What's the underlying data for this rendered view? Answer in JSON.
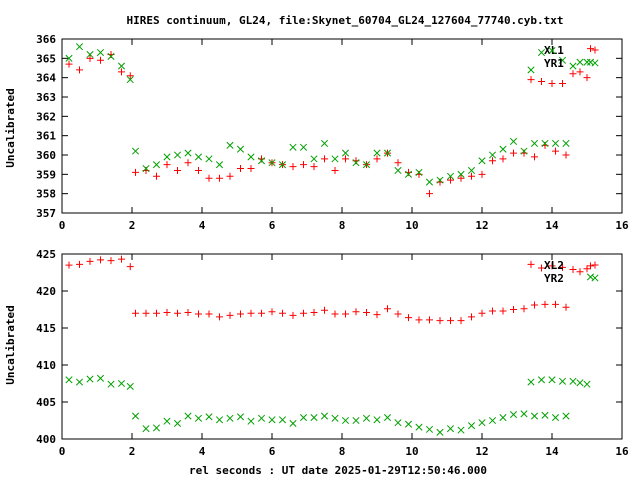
{
  "figure": {
    "title": "HIRES continuum, GL24, file:Skynet_60704_GL24_127604_77740.cyb.txt",
    "xlabel": "rel seconds : UT date 2025-01-29T12:50:46.000"
  },
  "colors": {
    "series1": "#ff0000",
    "series2": "#00a000",
    "axes": "#000000"
  },
  "chart_data": [
    {
      "type": "scatter",
      "ylabel": "Uncalibrated",
      "xlim": [
        0,
        16
      ],
      "ylim": [
        357,
        366
      ],
      "xticks": [
        "0",
        "2",
        "4",
        "6",
        "8",
        "10",
        "12",
        "14",
        "16"
      ],
      "yticks": [
        "357",
        "358",
        "359",
        "360",
        "361",
        "362",
        "363",
        "364",
        "365",
        "366"
      ],
      "legend_position": "top-right",
      "grid": false,
      "series": [
        {
          "name": "XL1",
          "marker": "plus",
          "color": "#ff0000",
          "points": [
            [
              0.2,
              364.7
            ],
            [
              0.5,
              364.4
            ],
            [
              0.8,
              365.0
            ],
            [
              1.1,
              364.9
            ],
            [
              1.4,
              365.2
            ],
            [
              1.7,
              364.3
            ],
            [
              1.95,
              364.1
            ],
            [
              2.1,
              359.1
            ],
            [
              2.4,
              359.2
            ],
            [
              2.7,
              358.9
            ],
            [
              3.0,
              359.5
            ],
            [
              3.3,
              359.2
            ],
            [
              3.6,
              359.6
            ],
            [
              3.9,
              359.2
            ],
            [
              4.2,
              358.8
            ],
            [
              4.5,
              358.8
            ],
            [
              4.8,
              358.9
            ],
            [
              5.1,
              359.3
            ],
            [
              5.4,
              359.3
            ],
            [
              5.7,
              359.8
            ],
            [
              6.0,
              359.6
            ],
            [
              6.3,
              359.5
            ],
            [
              6.6,
              359.4
            ],
            [
              6.9,
              359.5
            ],
            [
              7.2,
              359.4
            ],
            [
              7.5,
              359.8
            ],
            [
              7.8,
              359.2
            ],
            [
              8.1,
              359.8
            ],
            [
              8.4,
              359.7
            ],
            [
              8.7,
              359.5
            ],
            [
              9.0,
              359.8
            ],
            [
              9.3,
              360.1
            ],
            [
              9.6,
              359.6
            ],
            [
              9.9,
              359.1
            ],
            [
              10.2,
              359.0
            ],
            [
              10.5,
              358.0
            ],
            [
              10.8,
              358.6
            ],
            [
              11.1,
              358.7
            ],
            [
              11.4,
              358.8
            ],
            [
              11.7,
              358.9
            ],
            [
              12.0,
              359.0
            ],
            [
              12.3,
              359.7
            ],
            [
              12.6,
              359.8
            ],
            [
              12.9,
              360.1
            ],
            [
              13.2,
              360.1
            ],
            [
              13.5,
              359.9
            ],
            [
              13.8,
              360.5
            ],
            [
              14.1,
              360.2
            ],
            [
              14.4,
              360.0
            ],
            [
              13.4,
              363.9
            ],
            [
              13.7,
              363.8
            ],
            [
              14.0,
              363.7
            ],
            [
              14.3,
              363.7
            ],
            [
              14.6,
              364.2
            ],
            [
              14.8,
              364.3
            ],
            [
              15.0,
              364.0
            ],
            [
              15.1,
              365.5
            ]
          ]
        },
        {
          "name": "YR1",
          "marker": "cross",
          "color": "#00a000",
          "points": [
            [
              0.2,
              365.0
            ],
            [
              0.5,
              365.6
            ],
            [
              0.8,
              365.2
            ],
            [
              1.1,
              365.3
            ],
            [
              1.4,
              365.1
            ],
            [
              1.7,
              364.6
            ],
            [
              1.95,
              363.9
            ],
            [
              2.1,
              360.2
            ],
            [
              2.4,
              359.3
            ],
            [
              2.7,
              359.5
            ],
            [
              3.0,
              359.9
            ],
            [
              3.3,
              360.0
            ],
            [
              3.6,
              360.1
            ],
            [
              3.9,
              359.9
            ],
            [
              4.2,
              359.8
            ],
            [
              4.5,
              359.5
            ],
            [
              4.8,
              360.5
            ],
            [
              5.1,
              360.3
            ],
            [
              5.4,
              359.9
            ],
            [
              5.7,
              359.7
            ],
            [
              6.0,
              359.6
            ],
            [
              6.3,
              359.5
            ],
            [
              6.6,
              360.4
            ],
            [
              6.9,
              360.4
            ],
            [
              7.2,
              359.8
            ],
            [
              7.5,
              360.6
            ],
            [
              7.8,
              359.8
            ],
            [
              8.1,
              360.1
            ],
            [
              8.4,
              359.6
            ],
            [
              8.7,
              359.5
            ],
            [
              9.0,
              360.1
            ],
            [
              9.3,
              360.1
            ],
            [
              9.6,
              359.2
            ],
            [
              9.9,
              359.0
            ],
            [
              10.2,
              359.1
            ],
            [
              10.5,
              358.6
            ],
            [
              10.8,
              358.7
            ],
            [
              11.1,
              358.9
            ],
            [
              11.4,
              359.0
            ],
            [
              11.7,
              359.2
            ],
            [
              12.0,
              359.7
            ],
            [
              12.3,
              360.0
            ],
            [
              12.6,
              360.3
            ],
            [
              12.9,
              360.7
            ],
            [
              13.2,
              360.2
            ],
            [
              13.5,
              360.6
            ],
            [
              13.8,
              360.6
            ],
            [
              14.1,
              360.6
            ],
            [
              14.4,
              360.6
            ],
            [
              13.4,
              364.4
            ],
            [
              13.7,
              365.3
            ],
            [
              14.0,
              365.4
            ],
            [
              14.3,
              364.9
            ],
            [
              14.6,
              364.6
            ],
            [
              14.8,
              364.8
            ],
            [
              15.0,
              364.8
            ],
            [
              15.1,
              364.8
            ]
          ]
        }
      ]
    },
    {
      "type": "scatter",
      "ylabel": "Uncalibrated",
      "xlim": [
        0,
        16
      ],
      "ylim": [
        400,
        425
      ],
      "xticks": [
        "0",
        "2",
        "4",
        "6",
        "8",
        "10",
        "12",
        "14",
        "16"
      ],
      "yticks": [
        "400",
        "405",
        "410",
        "415",
        "420",
        "425"
      ],
      "legend_position": "top-right",
      "grid": false,
      "series": [
        {
          "name": "XL2",
          "marker": "plus",
          "color": "#ff0000",
          "points": [
            [
              0.2,
              423.5
            ],
            [
              0.5,
              423.6
            ],
            [
              0.8,
              424.0
            ],
            [
              1.1,
              424.2
            ],
            [
              1.4,
              424.1
            ],
            [
              1.7,
              424.3
            ],
            [
              1.95,
              423.3
            ],
            [
              2.1,
              417.0
            ],
            [
              2.4,
              417.0
            ],
            [
              2.7,
              417.0
            ],
            [
              3.0,
              417.1
            ],
            [
              3.3,
              417.0
            ],
            [
              3.6,
              417.1
            ],
            [
              3.9,
              416.9
            ],
            [
              4.2,
              416.9
            ],
            [
              4.5,
              416.5
            ],
            [
              4.8,
              416.7
            ],
            [
              5.1,
              416.9
            ],
            [
              5.4,
              417.0
            ],
            [
              5.7,
              417.0
            ],
            [
              6.0,
              417.2
            ],
            [
              6.3,
              417.0
            ],
            [
              6.6,
              416.7
            ],
            [
              6.9,
              417.0
            ],
            [
              7.2,
              417.1
            ],
            [
              7.5,
              417.4
            ],
            [
              7.8,
              416.9
            ],
            [
              8.1,
              416.9
            ],
            [
              8.4,
              417.2
            ],
            [
              8.7,
              417.1
            ],
            [
              9.0,
              416.8
            ],
            [
              9.3,
              417.6
            ],
            [
              9.6,
              416.9
            ],
            [
              9.9,
              416.4
            ],
            [
              10.2,
              416.1
            ],
            [
              10.5,
              416.1
            ],
            [
              10.8,
              416.0
            ],
            [
              11.1,
              416.0
            ],
            [
              11.4,
              416.0
            ],
            [
              11.7,
              416.5
            ],
            [
              12.0,
              417.0
            ],
            [
              12.3,
              417.3
            ],
            [
              12.6,
              417.3
            ],
            [
              12.9,
              417.5
            ],
            [
              13.2,
              417.6
            ],
            [
              13.5,
              418.1
            ],
            [
              13.8,
              418.2
            ],
            [
              14.1,
              418.2
            ],
            [
              14.4,
              417.8
            ],
            [
              13.4,
              423.6
            ],
            [
              13.7,
              423.1
            ],
            [
              14.0,
              423.4
            ],
            [
              14.3,
              423.2
            ],
            [
              14.6,
              422.9
            ],
            [
              14.8,
              422.6
            ],
            [
              15.0,
              423.0
            ],
            [
              15.1,
              423.4
            ]
          ]
        },
        {
          "name": "YR2",
          "marker": "cross",
          "color": "#00a000",
          "points": [
            [
              0.2,
              408.0
            ],
            [
              0.5,
              407.7
            ],
            [
              0.8,
              408.1
            ],
            [
              1.1,
              408.2
            ],
            [
              1.4,
              407.4
            ],
            [
              1.7,
              407.5
            ],
            [
              1.95,
              407.1
            ],
            [
              2.1,
              403.1
            ],
            [
              2.4,
              401.4
            ],
            [
              2.7,
              401.5
            ],
            [
              3.0,
              402.4
            ],
            [
              3.3,
              402.1
            ],
            [
              3.6,
              403.1
            ],
            [
              3.9,
              402.8
            ],
            [
              4.2,
              403.0
            ],
            [
              4.5,
              402.6
            ],
            [
              4.8,
              402.8
            ],
            [
              5.1,
              403.0
            ],
            [
              5.4,
              402.4
            ],
            [
              5.7,
              402.8
            ],
            [
              6.0,
              402.6
            ],
            [
              6.3,
              402.6
            ],
            [
              6.6,
              402.1
            ],
            [
              6.9,
              402.9
            ],
            [
              7.2,
              402.9
            ],
            [
              7.5,
              403.1
            ],
            [
              7.8,
              402.8
            ],
            [
              8.1,
              402.5
            ],
            [
              8.4,
              402.5
            ],
            [
              8.7,
              402.8
            ],
            [
              9.0,
              402.6
            ],
            [
              9.3,
              402.9
            ],
            [
              9.6,
              402.2
            ],
            [
              9.9,
              402.0
            ],
            [
              10.2,
              401.6
            ],
            [
              10.5,
              401.3
            ],
            [
              10.8,
              400.9
            ],
            [
              11.1,
              401.4
            ],
            [
              11.4,
              401.2
            ],
            [
              11.7,
              401.8
            ],
            [
              12.0,
              402.2
            ],
            [
              12.3,
              402.5
            ],
            [
              12.6,
              402.9
            ],
            [
              12.9,
              403.3
            ],
            [
              13.2,
              403.4
            ],
            [
              13.5,
              403.1
            ],
            [
              13.8,
              403.2
            ],
            [
              14.1,
              402.9
            ],
            [
              14.4,
              403.1
            ],
            [
              13.4,
              407.7
            ],
            [
              13.7,
              408.0
            ],
            [
              14.0,
              408.0
            ],
            [
              14.3,
              407.8
            ],
            [
              14.6,
              407.8
            ],
            [
              14.8,
              407.6
            ],
            [
              15.0,
              407.4
            ],
            [
              15.1,
              421.9
            ]
          ]
        }
      ]
    }
  ]
}
